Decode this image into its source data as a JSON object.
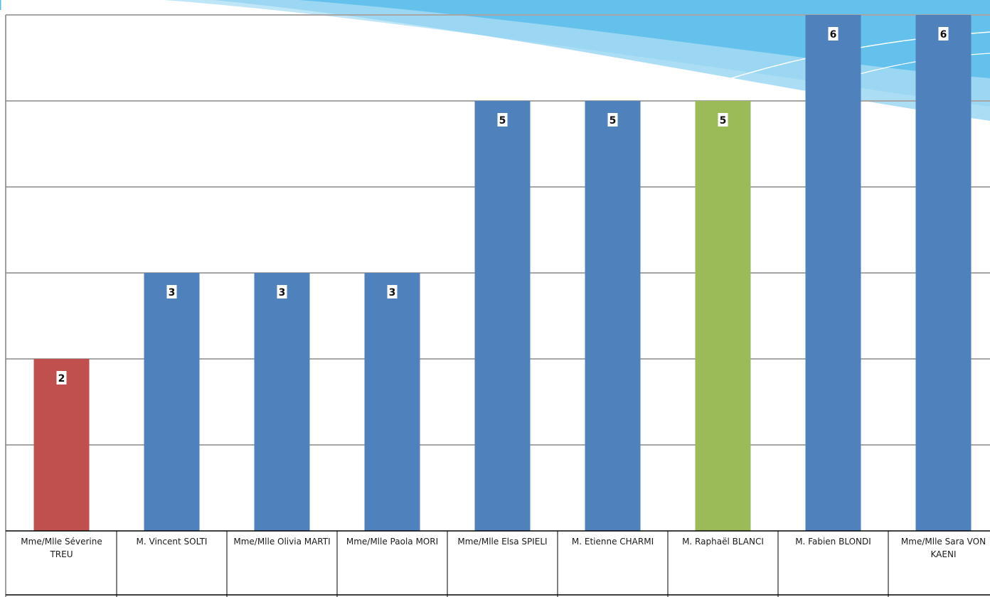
{
  "chart_data": {
    "type": "bar",
    "categories": [
      "Mme/Mlle Séverine TREU",
      "M. Vincent SOLTI",
      "Mme/Mlle Olivia MARTI",
      "Mme/Mlle Paola MORI",
      "Mme/Mlle Elsa SPIELI",
      "M. Etienne CHARMI",
      "M. Raphaël BLANCI",
      "M. Fabien BLONDI",
      "Mme/Mlle Sara VON KAENI"
    ],
    "values": [
      2,
      3,
      3,
      3,
      5,
      5,
      5,
      6,
      6
    ],
    "value_labels": [
      "2",
      "3",
      "3",
      "3",
      "5",
      "5",
      "5",
      "6",
      "6"
    ],
    "bar_colors": [
      "#c0504d",
      "#4f81bd",
      "#4f81bd",
      "#4f81bd",
      "#4f81bd",
      "#4f81bd",
      "#9bbb59",
      "#4f81bd",
      "#4f81bd"
    ],
    "ylim": [
      0,
      6
    ],
    "grid": true,
    "title": "",
    "xlabel": "",
    "ylabel": ""
  },
  "colors": {
    "grid": "#a6a6a6",
    "axis": "#7f7f7f",
    "table_border": "#000000",
    "swoosh_light": "#bfe6f7",
    "swoosh_mid": "#8fd1f0",
    "swoosh_dark": "#55bbea"
  }
}
